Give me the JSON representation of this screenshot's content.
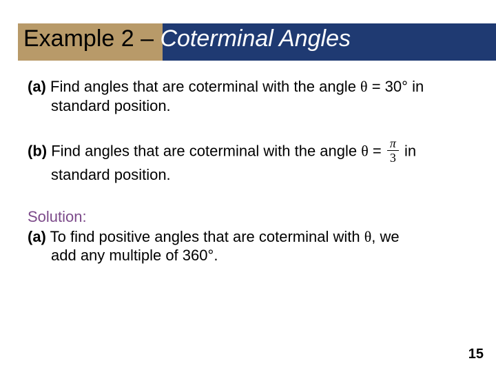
{
  "colors": {
    "title_bg_blue": "#1f3a72",
    "title_bg_tan": "#b89a69",
    "solution_color": "#7c4a8a",
    "text_color": "#000000",
    "bg": "#ffffff"
  },
  "title": {
    "part_a": "Example 2 – ",
    "part_b": "Coterminal Angles"
  },
  "body": {
    "a_label": "(a)",
    "a_text_1": " Find angles that are coterminal with the angle ",
    "a_theta": "θ",
    "a_eq": " = 30",
    "a_deg": "°",
    "a_tail": " in",
    "a_line2": "standard position.",
    "b_label": "(b)",
    "b_text_1": " Find angles that are coterminal with the angle ",
    "b_theta": "θ",
    "b_eq": " = ",
    "b_frac_num": "π",
    "b_frac_den": "3",
    "b_tail": "  in",
    "b_line2": "standard position.",
    "solution_head": "Solution:",
    "sol_a_label": "(a)",
    "sol_a_text_1": " To find positive angles that are coterminal with ",
    "sol_a_theta": "θ",
    "sol_a_tail": ", we",
    "sol_a_line2_a": "add any multiple of 360",
    "sol_a_line2_deg": "°",
    "sol_a_line2_b": "."
  },
  "page_number": "15"
}
